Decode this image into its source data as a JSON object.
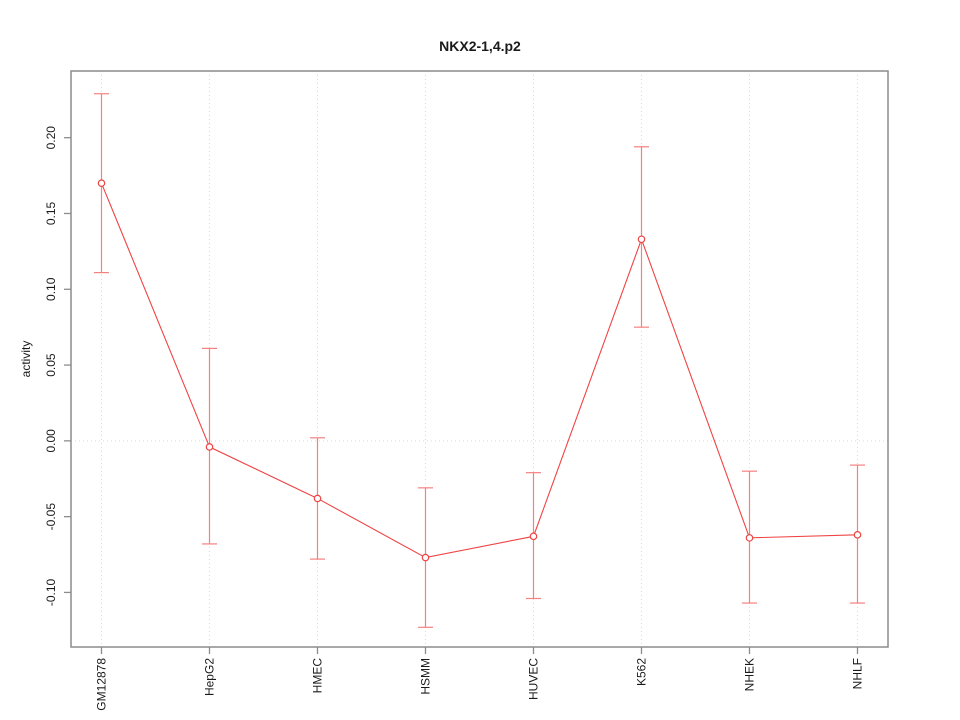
{
  "figure": {
    "title": "NKX2-1,4.p2",
    "ylabel": "activity"
  },
  "chart_data": {
    "type": "line",
    "title": "NKX2-1,4.p2",
    "xlabel": "",
    "ylabel": "activity",
    "categories": [
      "GM12878",
      "HepG2",
      "HMEC",
      "HSMM",
      "HUVEC",
      "K562",
      "NHEK",
      "NHLF"
    ],
    "series": [
      {
        "name": "activity",
        "values": [
          0.17,
          -0.004,
          -0.038,
          -0.077,
          -0.063,
          0.133,
          -0.064,
          -0.062
        ],
        "error_low": [
          0.111,
          -0.068,
          -0.078,
          -0.123,
          -0.104,
          0.075,
          -0.107,
          -0.107
        ],
        "error_high": [
          0.229,
          0.061,
          0.002,
          -0.031,
          -0.021,
          0.194,
          -0.02,
          -0.016
        ]
      }
    ],
    "ylim": [
      -0.136,
      0.244
    ],
    "yticks": [
      -0.1,
      -0.05,
      0.0,
      0.05,
      0.1,
      0.15,
      0.2
    ],
    "ytick_decimals": 2,
    "grid": {
      "vertical_at_categories": true,
      "horizontal_at_zero": true,
      "style": "dotted"
    },
    "legend": "none",
    "marker": "open-circle",
    "colors": {
      "line": "#ef4444",
      "point": "#ef4444",
      "errorbar": "#f58080",
      "axis": "#8c8c8c",
      "grid": "#d9d9d9",
      "text": "#1a1a1a",
      "background": "#ffffff"
    }
  }
}
